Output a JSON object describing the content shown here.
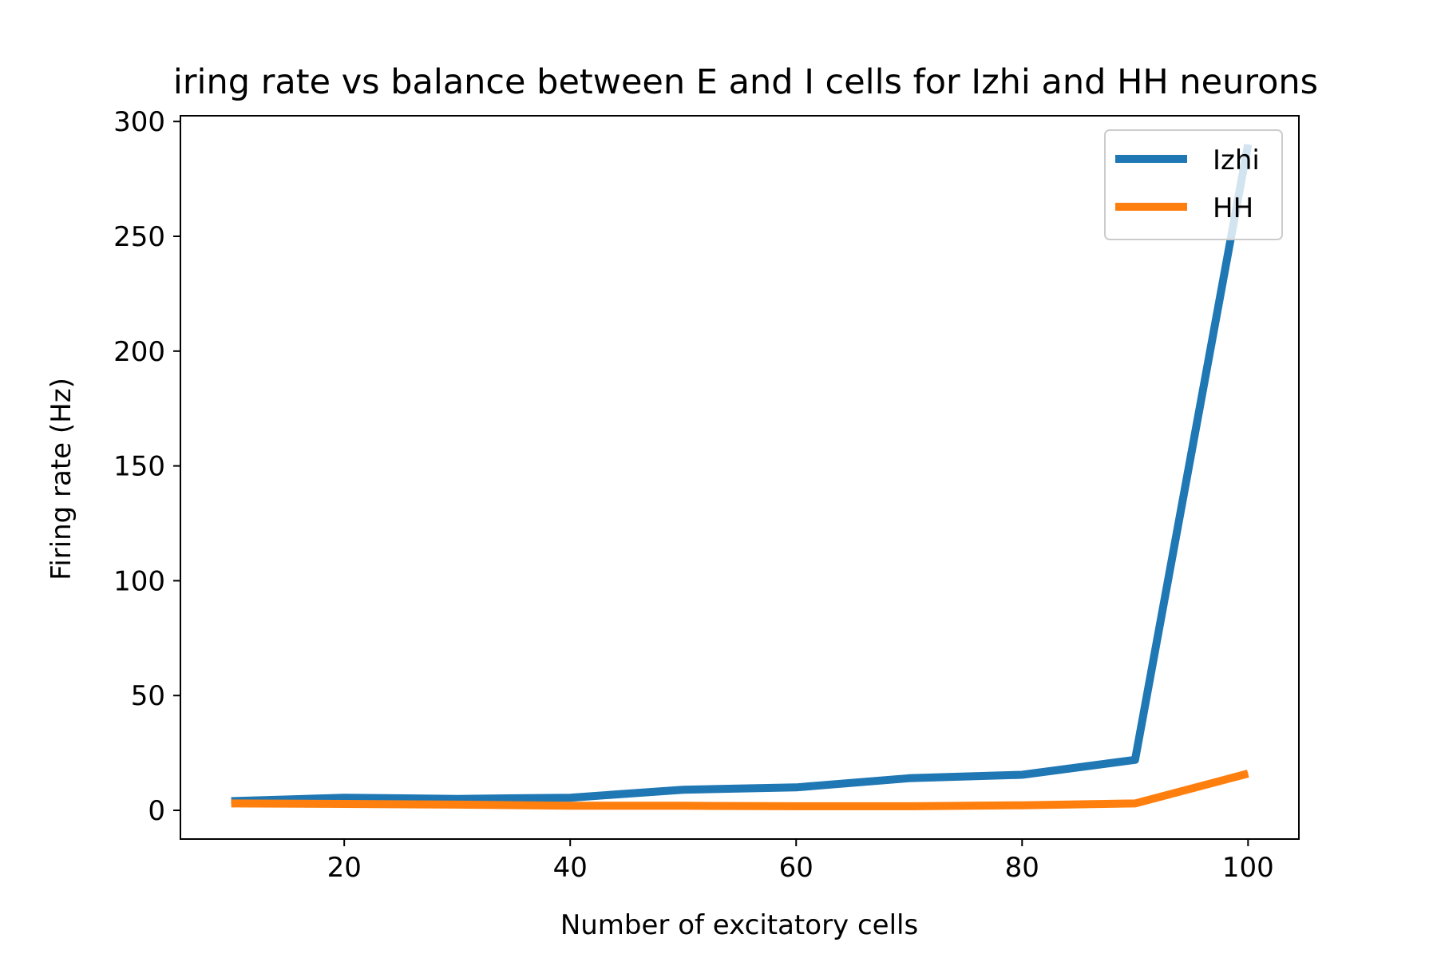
{
  "chart_data": {
    "type": "line",
    "title": "iring rate vs balance between E and I cells for Izhi and HH neurons",
    "xlabel": "Number of excitatory cells",
    "ylabel": "Firing rate (Hz)",
    "xlim": [
      5.5,
      104.5
    ],
    "ylim": [
      -12.5,
      302.5
    ],
    "xticks": [
      20,
      40,
      60,
      80,
      100
    ],
    "yticks": [
      0,
      50,
      100,
      150,
      200,
      250,
      300
    ],
    "xtick_labels": [
      "20",
      "40",
      "60",
      "80",
      "100"
    ],
    "ytick_labels": [
      "0",
      "50",
      "100",
      "150",
      "200",
      "250",
      "300"
    ],
    "grid": false,
    "legend_position": "top-right",
    "x": [
      10,
      20,
      30,
      40,
      50,
      60,
      70,
      80,
      90,
      100
    ],
    "series": [
      {
        "name": "Izhi",
        "color": "#1f77b4",
        "values": [
          4,
          5.5,
          5,
          5.5,
          9,
          10,
          14,
          15.5,
          22,
          290
        ]
      },
      {
        "name": "HH",
        "color": "#ff7f0e",
        "values": [
          3,
          2.8,
          2.5,
          2,
          2,
          1.8,
          1.8,
          2.2,
          3,
          16
        ]
      }
    ]
  }
}
